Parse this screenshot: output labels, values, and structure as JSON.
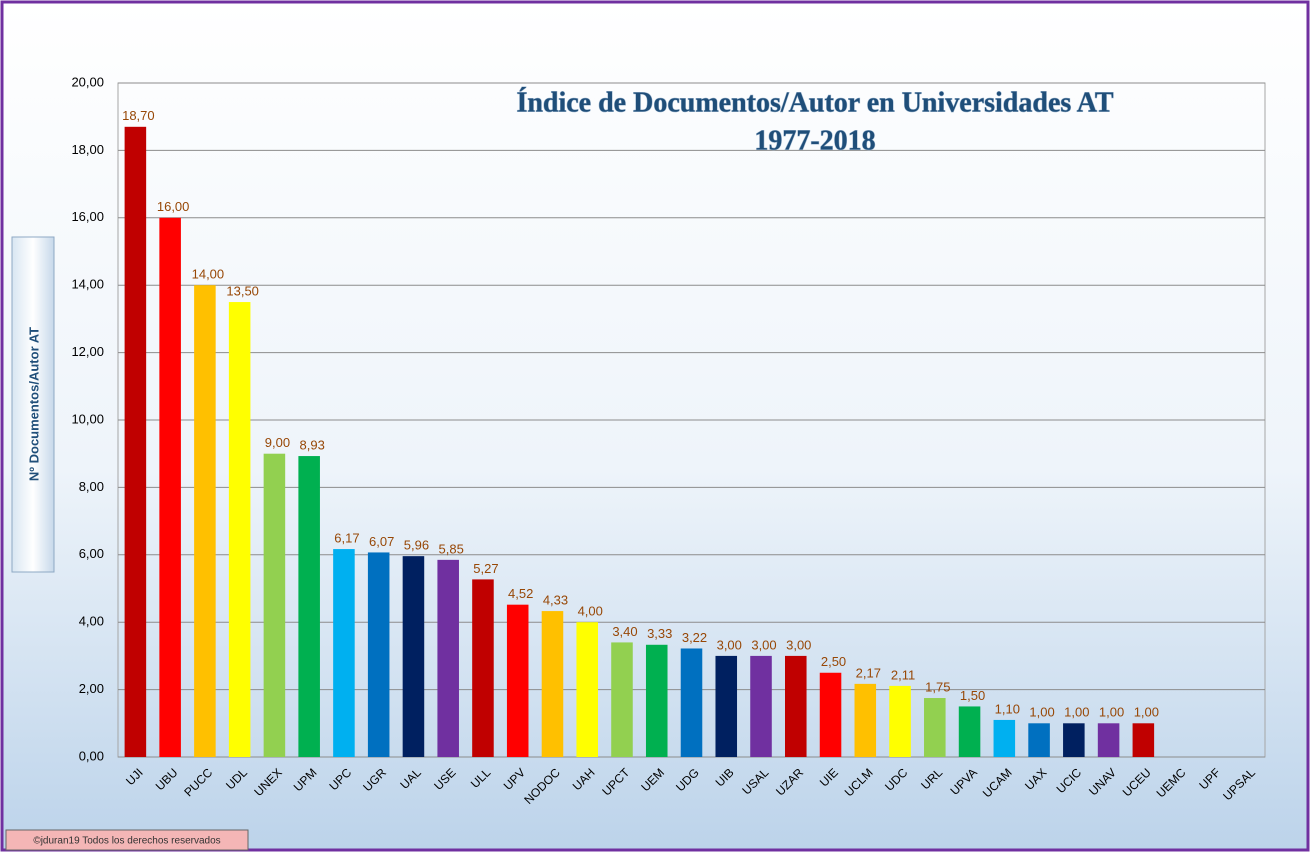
{
  "chart_data": {
    "type": "bar",
    "title": [
      "Índice de Documentos/Autor en Universidades AT",
      "1977-2018"
    ],
    "y_label": "Nº Documentos/Autor AT",
    "footer": "©jduran19 Todos los derechos reservados",
    "categories": [
      "UJI",
      "UBU",
      "PUCC",
      "UDL",
      "UNEX",
      "UPM",
      "UPC",
      "UGR",
      "UAL",
      "USE",
      "ULL",
      "UPV",
      "NODOC",
      "UAH",
      "UPCT",
      "UEM",
      "UDG",
      "UIB",
      "USAL",
      "UZAR",
      "UIE",
      "UCLM",
      "UDC",
      "URL",
      "UPVA",
      "UCAM",
      "UAX",
      "UCIC",
      "UNAV",
      "UCEU",
      "UEMC",
      "UPF",
      "UPSAL"
    ],
    "values": [
      18.7,
      16,
      14,
      13.5,
      9,
      8.93,
      6.17,
      6.07,
      5.96,
      5.85,
      5.27,
      4.52,
      4.33,
      4,
      3.4,
      3.33,
      3.22,
      3,
      3,
      3,
      2.5,
      2.17,
      2.11,
      1.75,
      1.5,
      1.1,
      1,
      1,
      1,
      1,
      null,
      null,
      null
    ],
    "value_labels": [
      "18,70",
      "16,00",
      "14,00",
      "13,50",
      "9,00",
      "8,93",
      "6,17",
      "6,07",
      "5,96",
      "5,85",
      "5,27",
      "4,52",
      "4,33",
      "4,00",
      "3,40",
      "3,33",
      "3,22",
      "3,00",
      "3,00",
      "3,00",
      "2,50",
      "2,17",
      "2,11",
      "1,75",
      "1,50",
      "1,10",
      "1,00",
      "1,00",
      "1,00",
      "1,00",
      null,
      null,
      null
    ],
    "colors": [
      "#c00000",
      "#ff0000",
      "#ffc000",
      "#ffff00",
      "#92d050",
      "#00b050",
      "#00b0f0",
      "#0070c0",
      "#002060",
      "#7030a0",
      "#c00000",
      "#ff0000",
      "#ffc000",
      "#ffff00",
      "#92d050",
      "#00b050",
      "#0070c0",
      "#002060",
      "#7030a0",
      "#c00000",
      "#ff0000",
      "#ffc000",
      "#ffff00",
      "#92d050",
      "#00b050",
      "#00b0f0",
      "#0070c0",
      "#002060",
      "#7030a0",
      "#c00000",
      "#ff0000",
      "#ffc000",
      "#ffff00"
    ],
    "ylim": [
      0,
      20
    ],
    "yticks": [
      {
        "value": 0,
        "label": "0,00"
      },
      {
        "value": 2,
        "label": "2,00"
      },
      {
        "value": 4,
        "label": "4,00"
      },
      {
        "value": 6,
        "label": "6,00"
      },
      {
        "value": 8,
        "label": "8,00"
      },
      {
        "value": 10,
        "label": "10,00"
      },
      {
        "value": 12,
        "label": "12,00"
      },
      {
        "value": 14,
        "label": "14,00"
      },
      {
        "value": 16,
        "label": "16,00"
      },
      {
        "value": 18,
        "label": "18,00"
      },
      {
        "value": 20,
        "label": "20,00"
      }
    ],
    "grid": true
  }
}
